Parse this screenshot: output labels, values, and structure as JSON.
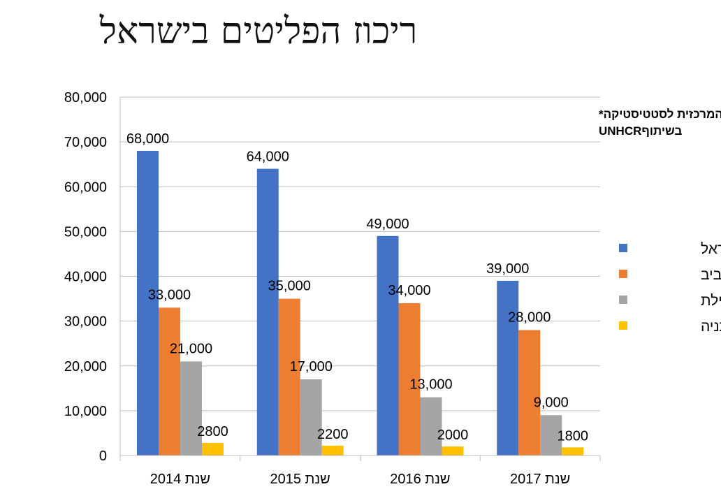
{
  "title": "ריכוז הפליטים בישראל",
  "annotation": {
    "line1": "הלשכה המרכזית לסטטיסטיקה*",
    "line2": "בשיתוףUNHCR"
  },
  "chart_data": {
    "type": "bar",
    "title": "ריכוז הפליטים בישראל",
    "categories": [
      "שנת 2014",
      "שנת 2015",
      "שנת 2016",
      "שנת 2017"
    ],
    "series": [
      {
        "name": "כלל ישראל",
        "color": "#4472C4",
        "values": [
          68000,
          64000,
          49000,
          39000
        ],
        "labels": [
          "68,000",
          "64,000",
          "49,000",
          "39,000"
        ]
      },
      {
        "name": "תל אביב",
        "color": "#ED7D31",
        "values": [
          33000,
          35000,
          34000,
          28000
        ],
        "labels": [
          "33,000",
          "35,000",
          "34,000",
          "28,000"
        ]
      },
      {
        "name": "אילת",
        "color": "#A5A5A5",
        "values": [
          21000,
          17000,
          13000,
          9000
        ],
        "labels": [
          "21,000",
          "17,000",
          "13,000",
          "9,000"
        ]
      },
      {
        "name": "נתניה",
        "color": "#FFC000",
        "values": [
          2800,
          2200,
          2000,
          1800
        ],
        "labels": [
          "2800",
          "2200",
          "2000",
          "1800"
        ]
      }
    ],
    "ylim": [
      0,
      80000
    ],
    "yticks": [
      0,
      10000,
      20000,
      30000,
      40000,
      50000,
      60000,
      70000,
      80000
    ],
    "ytick_labels": [
      "0",
      "10,000",
      "20,000",
      "30,000",
      "40,000",
      "50,000",
      "60,000",
      "70,000",
      "80,000"
    ],
    "grid": true,
    "legend": "right",
    "xlabel": "",
    "ylabel": ""
  }
}
